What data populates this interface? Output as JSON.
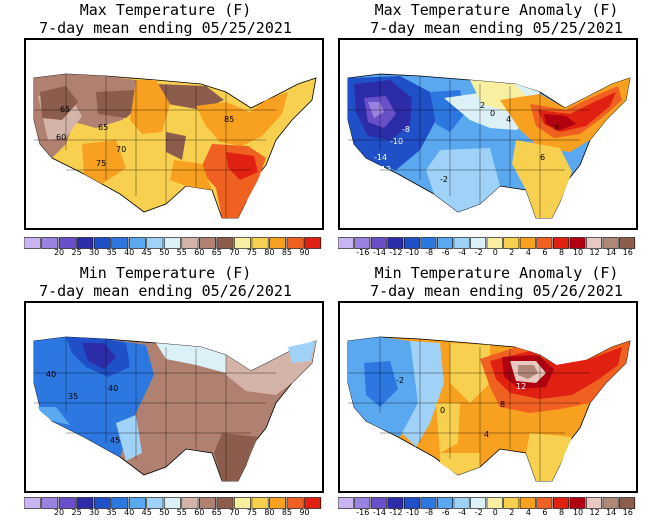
{
  "panels": [
    {
      "title_line1": "Max Temperature (F)",
      "title_line2": "7-day mean ending 05/25/2021",
      "labels": [
        "65",
        "60",
        "85",
        "70",
        "75",
        "65"
      ],
      "colorbar": {
        "colors": [
          "#c8b4f0",
          "#9a82e0",
          "#6a50c8",
          "#2c2ca8",
          "#2050c8",
          "#2c78e0",
          "#5aa8f0",
          "#a0d2f8",
          "#dcf0f8",
          "#d4b4a8",
          "#b08070",
          "#8c5c4c",
          "#f8f0a0",
          "#f8d050",
          "#f8a020",
          "#f06020",
          "#e02010"
        ],
        "labels": [
          "20",
          "25",
          "30",
          "35",
          "40",
          "45",
          "50",
          "55",
          "60",
          "65",
          "70",
          "75",
          "80",
          "85",
          "90"
        ]
      }
    },
    {
      "title_line1": "Max Temperature Anomaly (F)",
      "title_line2": "7-day mean ending 05/25/2021",
      "labels": [
        "-8",
        "-10",
        "-14",
        "-12",
        "0",
        "2",
        "4",
        "8",
        "6",
        "-2"
      ],
      "colorbar": {
        "colors": [
          "#c8b4f0",
          "#9a82e0",
          "#6a50c8",
          "#2c2ca8",
          "#2050c8",
          "#2c78e0",
          "#5aa8f0",
          "#a0d2f8",
          "#dcf0f8",
          "#f8f0a0",
          "#f8d050",
          "#f8a020",
          "#f06020",
          "#e02010",
          "#b00010",
          "#e8c8c0",
          "#b08878",
          "#8c5c4c"
        ],
        "labels": [
          "-16",
          "-14",
          "-12",
          "-10",
          "-8",
          "-6",
          "-4",
          "-2",
          "0",
          "2",
          "4",
          "6",
          "8",
          "10",
          "12",
          "14",
          "16"
        ]
      }
    },
    {
      "title_line1": "Min Temperature (F)",
      "title_line2": "7-day mean ending 05/26/2021",
      "labels": [
        "40",
        "35",
        "40",
        "45"
      ],
      "colorbar": {
        "colors": [
          "#c8b4f0",
          "#9a82e0",
          "#6a50c8",
          "#2c2ca8",
          "#2050c8",
          "#2c78e0",
          "#5aa8f0",
          "#a0d2f8",
          "#dcf0f8",
          "#d4b4a8",
          "#b08070",
          "#8c5c4c",
          "#f8f0a0",
          "#f8d050",
          "#f8a020",
          "#f06020",
          "#e02010"
        ],
        "labels": [
          "20",
          "25",
          "30",
          "35",
          "40",
          "45",
          "50",
          "55",
          "60",
          "65",
          "70",
          "75",
          "80",
          "85",
          "90"
        ]
      }
    },
    {
      "title_line1": "Min Temperature Anomaly (F)",
      "title_line2": "7-day mean ending 05/26/2021",
      "labels": [
        "12",
        "8",
        "4",
        "0",
        "-2"
      ],
      "colorbar": {
        "colors": [
          "#c8b4f0",
          "#9a82e0",
          "#6a50c8",
          "#2c2ca8",
          "#2050c8",
          "#2c78e0",
          "#5aa8f0",
          "#a0d2f8",
          "#dcf0f8",
          "#f8f0a0",
          "#f8d050",
          "#f8a020",
          "#f06020",
          "#e02010",
          "#b00010",
          "#e8c8c0",
          "#b08878",
          "#8c5c4c"
        ],
        "labels": [
          "-16",
          "-14",
          "-12",
          "-10",
          "-8",
          "-6",
          "-4",
          "-2",
          "0",
          "2",
          "4",
          "6",
          "8",
          "10",
          "12",
          "14",
          "16"
        ]
      }
    }
  ]
}
